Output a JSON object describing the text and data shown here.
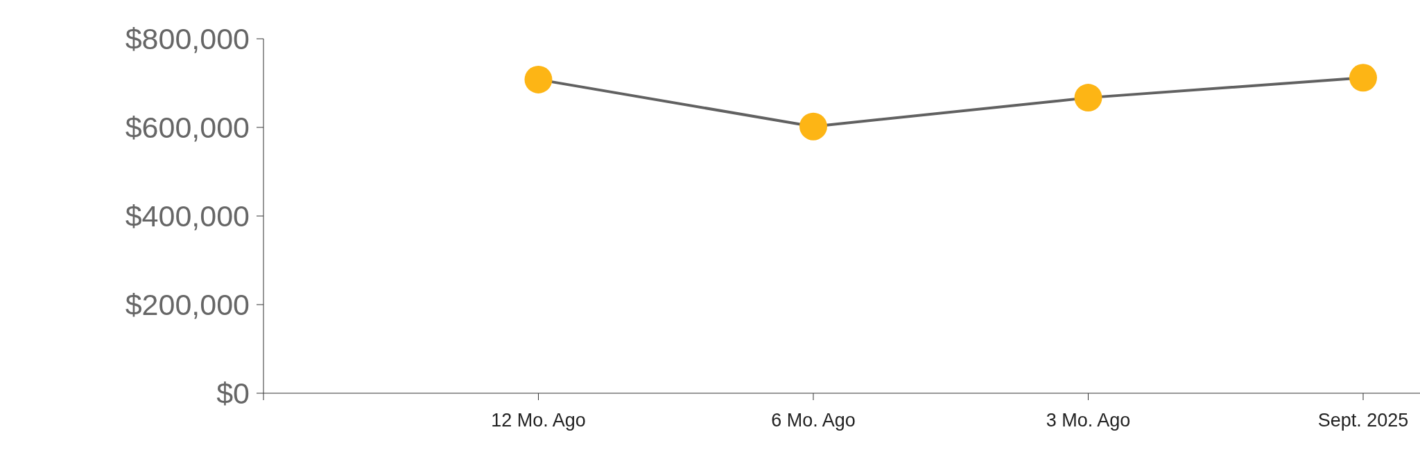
{
  "chart_data": {
    "type": "line",
    "categories": [
      "12 Mo. Ago",
      "6 Mo. Ago",
      "3 Mo. Ago",
      "Sept. 2025"
    ],
    "series": [
      {
        "color": "#616161",
        "values": [
          708000,
          602000,
          667000,
          712000
        ]
      }
    ],
    "marker": "circle",
    "ylim": [
      0,
      800000
    ],
    "yticks": [
      {
        "value": 0,
        "label": "$0"
      },
      {
        "value": 200000,
        "label": "$200,000"
      },
      {
        "value": 400000,
        "label": "$400,000"
      },
      {
        "value": 600000,
        "label": "$600,000"
      },
      {
        "value": 800000,
        "label": "$800,000"
      }
    ],
    "grid": false
  }
}
